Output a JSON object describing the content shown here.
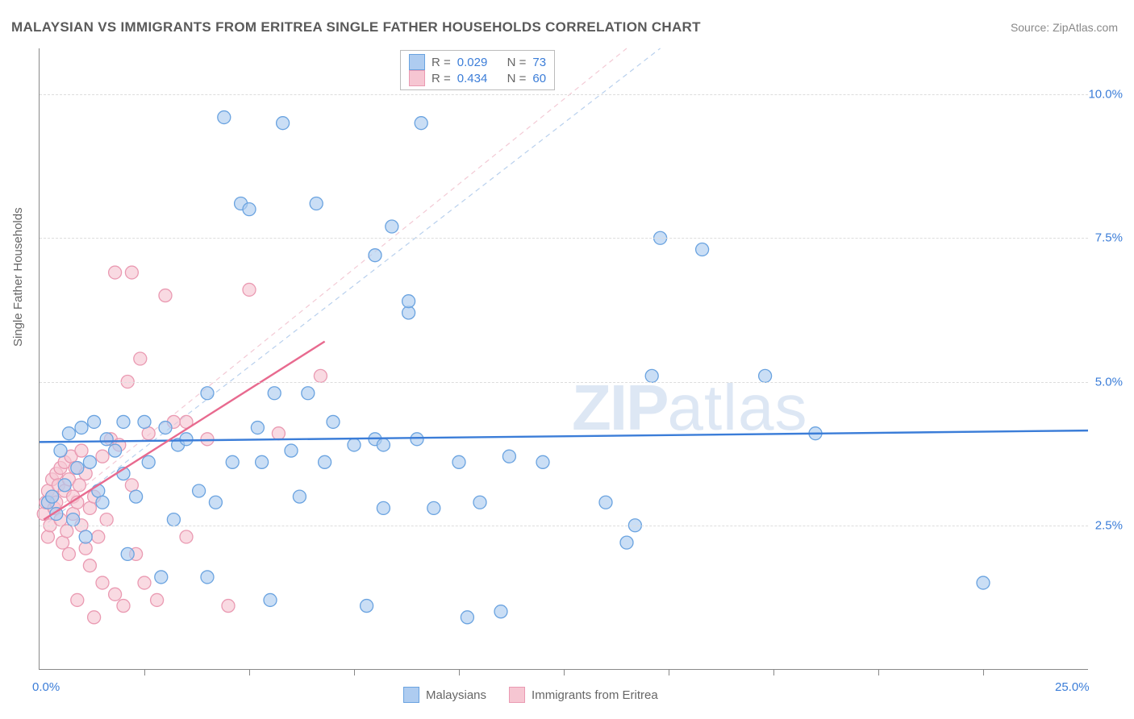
{
  "title": "MALAYSIAN VS IMMIGRANTS FROM ERITREA SINGLE FATHER HOUSEHOLDS CORRELATION CHART",
  "source": "Source: ZipAtlas.com",
  "ylabel": "Single Father Households",
  "watermark_zip": "ZIP",
  "watermark_atlas": "atlas",
  "chart": {
    "type": "scatter",
    "xlim": [
      0,
      25
    ],
    "ylim": [
      0,
      10.8
    ],
    "background_color": "#ffffff",
    "grid_color": "#dddddd",
    "axis_color": "#888888",
    "xtick_positions": [
      0,
      2.5,
      5,
      7.5,
      10,
      12.5,
      15,
      17.5,
      20,
      22.5,
      25
    ],
    "xtick_labels_shown": {
      "0": "0.0%",
      "25": "25.0%"
    },
    "ytick_positions": [
      2.5,
      5.0,
      7.5,
      10.0
    ],
    "ytick_labels": [
      "2.5%",
      "5.0%",
      "7.5%",
      "10.0%"
    ],
    "label_color": "#3b7dd8",
    "label_fontsize": 15,
    "marker_radius": 8,
    "marker_stroke_width": 1.3,
    "trend_line_width": 2.4,
    "dashed_line_width": 1.2,
    "series": [
      {
        "name": "Malaysians",
        "fill_color": "#aeccf0",
        "stroke_color": "#6aa3e0",
        "fill_opacity": 0.65,
        "R": "0.029",
        "N": "73",
        "trend": {
          "x1": 0,
          "y1": 3.95,
          "x2": 25,
          "y2": 4.15,
          "color": "#3b7dd8"
        },
        "dashed": {
          "x1": 0.2,
          "y1": 2.55,
          "x2": 14.8,
          "y2": 10.8,
          "color": "#b8d0ed"
        },
        "points": [
          [
            0.2,
            2.9
          ],
          [
            0.3,
            3.0
          ],
          [
            0.4,
            2.7
          ],
          [
            0.5,
            3.8
          ],
          [
            0.6,
            3.2
          ],
          [
            0.7,
            4.1
          ],
          [
            0.8,
            2.6
          ],
          [
            0.9,
            3.5
          ],
          [
            1.0,
            4.2
          ],
          [
            1.1,
            2.3
          ],
          [
            1.2,
            3.6
          ],
          [
            1.3,
            4.3
          ],
          [
            1.4,
            3.1
          ],
          [
            1.5,
            2.9
          ],
          [
            1.6,
            4.0
          ],
          [
            1.8,
            3.8
          ],
          [
            2.0,
            3.4
          ],
          [
            2.0,
            4.3
          ],
          [
            2.1,
            2.0
          ],
          [
            2.3,
            3.0
          ],
          [
            2.5,
            4.3
          ],
          [
            2.6,
            3.6
          ],
          [
            2.9,
            1.6
          ],
          [
            3.0,
            4.2
          ],
          [
            3.2,
            2.6
          ],
          [
            3.3,
            3.9
          ],
          [
            3.5,
            4.0
          ],
          [
            3.8,
            3.1
          ],
          [
            4.0,
            1.6
          ],
          [
            4.0,
            4.8
          ],
          [
            4.2,
            2.9
          ],
          [
            4.4,
            9.6
          ],
          [
            4.6,
            3.6
          ],
          [
            4.8,
            8.1
          ],
          [
            5.0,
            8.0
          ],
          [
            5.2,
            4.2
          ],
          [
            5.3,
            3.6
          ],
          [
            5.5,
            1.2
          ],
          [
            5.6,
            4.8
          ],
          [
            5.8,
            9.5
          ],
          [
            6.0,
            3.8
          ],
          [
            6.2,
            3.0
          ],
          [
            6.4,
            4.8
          ],
          [
            6.6,
            8.1
          ],
          [
            6.8,
            3.6
          ],
          [
            7.0,
            4.3
          ],
          [
            7.5,
            3.9
          ],
          [
            7.8,
            1.1
          ],
          [
            8.0,
            4.0
          ],
          [
            8.0,
            7.2
          ],
          [
            8.2,
            2.8
          ],
          [
            8.2,
            3.9
          ],
          [
            8.4,
            7.7
          ],
          [
            8.8,
            6.2
          ],
          [
            8.8,
            6.4
          ],
          [
            9.0,
            4.0
          ],
          [
            9.1,
            9.5
          ],
          [
            9.4,
            2.8
          ],
          [
            10.0,
            3.6
          ],
          [
            10.2,
            0.9
          ],
          [
            10.5,
            2.9
          ],
          [
            11.0,
            1.0
          ],
          [
            11.2,
            3.7
          ],
          [
            12.0,
            3.6
          ],
          [
            13.5,
            2.9
          ],
          [
            14.0,
            2.2
          ],
          [
            14.2,
            2.5
          ],
          [
            14.6,
            5.1
          ],
          [
            14.8,
            7.5
          ],
          [
            15.8,
            7.3
          ],
          [
            17.3,
            5.1
          ],
          [
            22.5,
            1.5
          ],
          [
            18.5,
            4.1
          ]
        ]
      },
      {
        "name": "Immigrants from Eritrea",
        "fill_color": "#f6c6d2",
        "stroke_color": "#ea9ab2",
        "fill_opacity": 0.65,
        "R": "0.434",
        "N": "60",
        "trend": {
          "x1": 0.1,
          "y1": 2.6,
          "x2": 6.8,
          "y2": 5.7,
          "color": "#e86a8f"
        },
        "dashed": {
          "x1": 0.1,
          "y1": 2.6,
          "x2": 14.0,
          "y2": 10.8,
          "color": "#f3cad5"
        },
        "points": [
          [
            0.1,
            2.7
          ],
          [
            0.15,
            2.9
          ],
          [
            0.2,
            2.3
          ],
          [
            0.2,
            3.1
          ],
          [
            0.25,
            2.5
          ],
          [
            0.3,
            3.0
          ],
          [
            0.3,
            3.3
          ],
          [
            0.35,
            2.8
          ],
          [
            0.4,
            3.4
          ],
          [
            0.4,
            2.9
          ],
          [
            0.45,
            3.2
          ],
          [
            0.5,
            2.6
          ],
          [
            0.5,
            3.5
          ],
          [
            0.55,
            2.2
          ],
          [
            0.6,
            3.1
          ],
          [
            0.6,
            3.6
          ],
          [
            0.65,
            2.4
          ],
          [
            0.7,
            3.3
          ],
          [
            0.7,
            2.0
          ],
          [
            0.75,
            3.7
          ],
          [
            0.8,
            3.0
          ],
          [
            0.8,
            2.7
          ],
          [
            0.85,
            3.5
          ],
          [
            0.9,
            2.9
          ],
          [
            0.9,
            1.2
          ],
          [
            0.95,
            3.2
          ],
          [
            1.0,
            2.5
          ],
          [
            1.0,
            3.8
          ],
          [
            1.1,
            2.1
          ],
          [
            1.1,
            3.4
          ],
          [
            1.2,
            2.8
          ],
          [
            1.2,
            1.8
          ],
          [
            1.3,
            3.0
          ],
          [
            1.3,
            0.9
          ],
          [
            1.4,
            2.3
          ],
          [
            1.5,
            3.7
          ],
          [
            1.5,
            1.5
          ],
          [
            1.6,
            2.6
          ],
          [
            1.7,
            4.0
          ],
          [
            1.8,
            1.3
          ],
          [
            1.8,
            6.9
          ],
          [
            1.9,
            3.9
          ],
          [
            2.0,
            1.1
          ],
          [
            2.1,
            5.0
          ],
          [
            2.2,
            3.2
          ],
          [
            2.2,
            6.9
          ],
          [
            2.3,
            2.0
          ],
          [
            2.4,
            5.4
          ],
          [
            2.5,
            1.5
          ],
          [
            2.6,
            4.1
          ],
          [
            2.8,
            1.2
          ],
          [
            3.0,
            6.5
          ],
          [
            3.2,
            4.3
          ],
          [
            3.5,
            2.3
          ],
          [
            3.5,
            4.3
          ],
          [
            4.0,
            4.0
          ],
          [
            4.5,
            1.1
          ],
          [
            5.0,
            6.6
          ],
          [
            5.7,
            4.1
          ],
          [
            6.7,
            5.1
          ]
        ]
      }
    ]
  },
  "legend_top": {
    "R_label": "R =",
    "N_label": "N ="
  },
  "legend_bottom": {
    "series1": "Malaysians",
    "series2": "Immigrants from Eritrea"
  }
}
